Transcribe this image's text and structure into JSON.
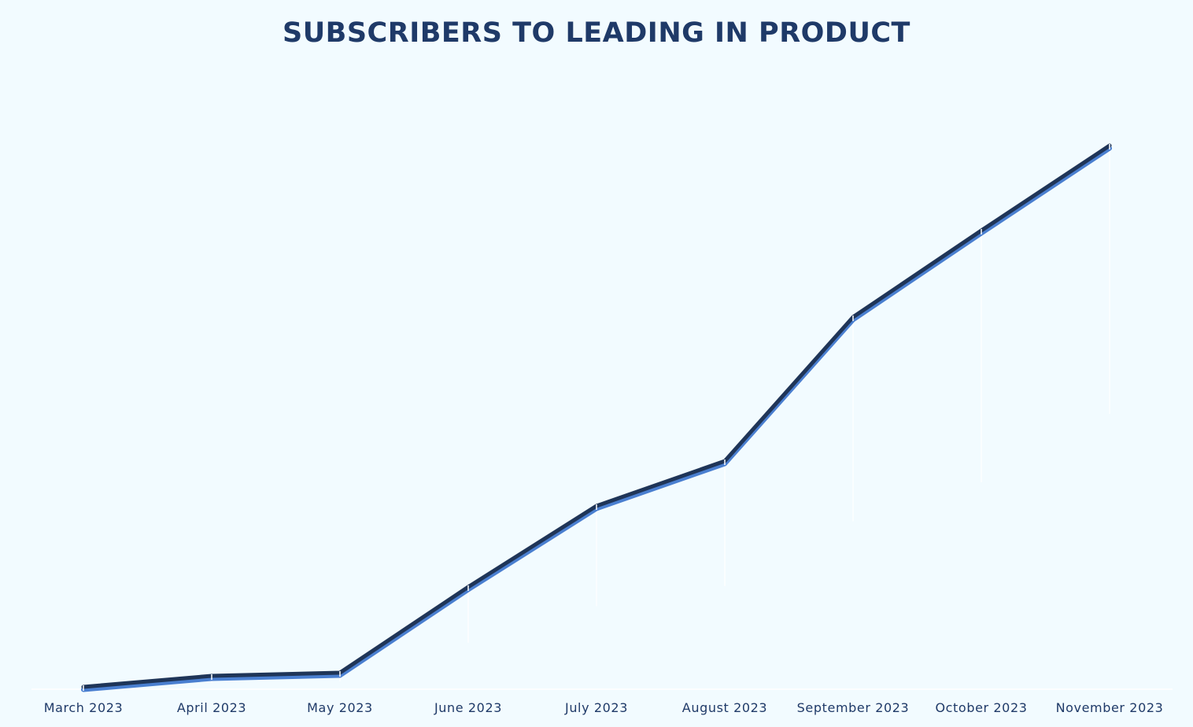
{
  "chart_data": {
    "type": "line",
    "title": "SUBSCRIBERS TO LEADING IN PRODUCT",
    "xlabel": "",
    "ylabel": "",
    "categories": [
      "March 2023",
      "April 2023",
      "May 2023",
      "June 2023",
      "July 2023",
      "August 2023",
      "September 2023",
      "October 2023",
      "November 2023"
    ],
    "series": [
      {
        "values": [
          0,
          14,
          18,
          127,
          230,
          287,
          470,
          580,
          688
        ]
      }
    ],
    "ylim": [
      0,
      700
    ],
    "grid": false,
    "legend": "none",
    "colors": {
      "background": "#f2fbff",
      "line_dark": "#1f3558",
      "line_light": "#4a7fd0",
      "text": "#1f3a68",
      "drop_line": "#ffffff"
    }
  }
}
